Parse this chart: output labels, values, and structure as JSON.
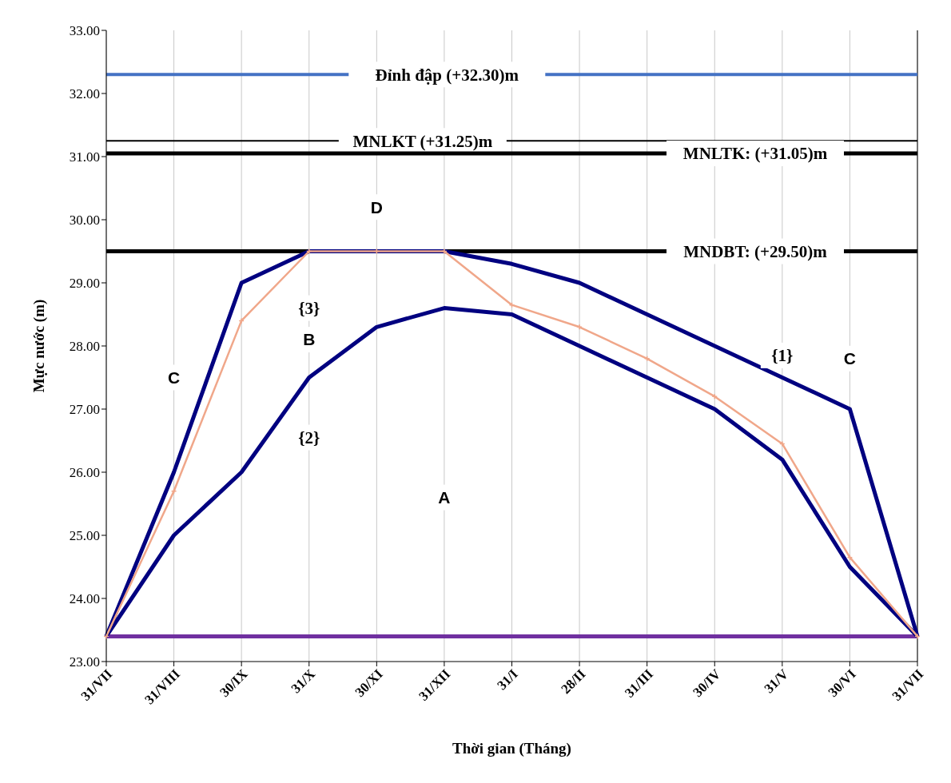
{
  "chart_data": {
    "type": "line",
    "xlabel": "Thời gian  (Tháng)",
    "ylabel": "Mực nước (m)",
    "categories": [
      "31/VII",
      "31/VIII",
      "30/IX",
      "31/X",
      "30/XI",
      "31/XII",
      "31/I",
      "28/II",
      "31/III",
      "30/IV",
      "31/V",
      "30/VI",
      "31/VII"
    ],
    "series": [
      {
        "name": "{1}",
        "color": "#000080",
        "values": [
          23.4,
          26.0,
          29.0,
          29.5,
          29.5,
          29.5,
          29.3,
          29.0,
          28.5,
          28.0,
          27.5,
          27.0,
          23.4
        ],
        "marker": "none"
      },
      {
        "name": "{2}",
        "color": "#000080",
        "values": [
          23.4,
          25.0,
          26.0,
          27.5,
          28.3,
          28.6,
          28.5,
          28.0,
          27.5,
          27.0,
          26.2,
          24.5,
          23.4
        ],
        "marker": "none"
      },
      {
        "name": "{3}",
        "color": "#f0a78a",
        "values": [
          23.4,
          25.7,
          28.4,
          29.5,
          29.5,
          29.5,
          28.65,
          28.3,
          27.8,
          27.2,
          26.45,
          24.65,
          23.4
        ],
        "marker": "cross"
      }
    ],
    "ylim": [
      23,
      33
    ],
    "yticks": [
      {
        "value": 23,
        "label": "23.00"
      },
      {
        "value": 24,
        "label": "24.00"
      },
      {
        "value": 25,
        "label": "25.00"
      },
      {
        "value": 26,
        "label": "26.00"
      },
      {
        "value": 27,
        "label": "27.00"
      },
      {
        "value": 28,
        "label": "28.00"
      },
      {
        "value": 29,
        "label": "29.00"
      },
      {
        "value": 30,
        "label": "30.00"
      },
      {
        "value": 31,
        "label": "31.00"
      },
      {
        "value": 32,
        "label": "32.00"
      },
      {
        "value": 33,
        "label": "33.00"
      }
    ],
    "ref_lines": [
      {
        "axis": "y",
        "value": 32.3,
        "label": "Đỉnh đập (+32.30)m",
        "color": "#4472c4"
      },
      {
        "axis": "y",
        "value": 31.25,
        "label": "MNLKT (+31.25)m",
        "color": "#000000"
      },
      {
        "axis": "y",
        "value": 31.05,
        "label": "MNLTK: (+31.05)m",
        "color": "#000000"
      },
      {
        "axis": "y",
        "value": 29.5,
        "label": "MNDBT: (+29.50)m",
        "color": "#000000"
      },
      {
        "axis": "y",
        "value": 23.4,
        "label": null,
        "color": "#7030a0"
      }
    ],
    "annotations": [
      {
        "text": "D",
        "x": "30/XI",
        "y": 30.2
      },
      {
        "text": "C",
        "x": "31/VIII",
        "y": 27.5
      },
      {
        "text": "C",
        "x": "30/VI",
        "y": 27.8
      },
      {
        "text": "B",
        "x": "31/X",
        "y": 28.1
      },
      {
        "text": "A",
        "x": "31/XII",
        "y": 25.6
      }
    ],
    "grid": "x",
    "legend": false,
    "line_style": "solid"
  }
}
